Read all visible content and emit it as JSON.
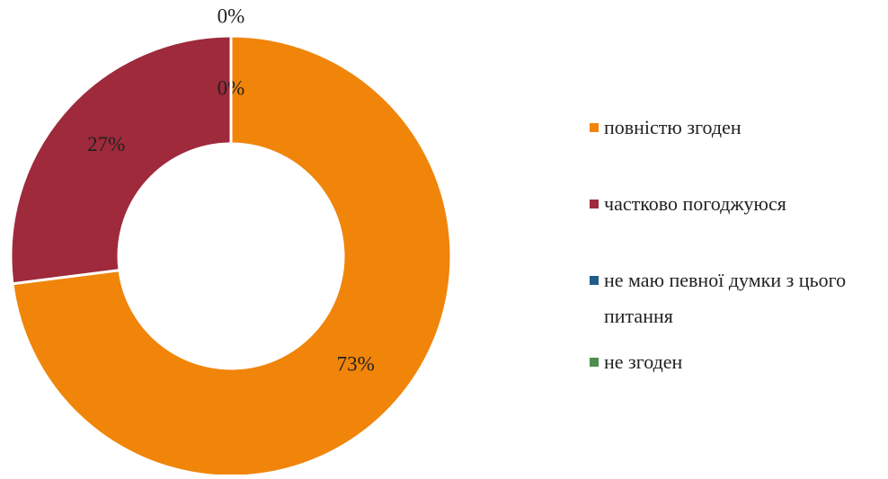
{
  "chart_data": {
    "type": "donut",
    "categories": [
      "повністю згоден",
      "частково погоджуюся",
      "не маю певної думки з цього питання",
      "не згоден"
    ],
    "values": [
      73,
      27,
      0,
      0
    ],
    "value_labels": [
      "73%",
      "27%",
      "0%",
      "0%"
    ],
    "colors": [
      "#f0850a",
      "#9e2a3b",
      "#1f5c8a",
      "#4e8e4e"
    ],
    "legend": "right"
  }
}
